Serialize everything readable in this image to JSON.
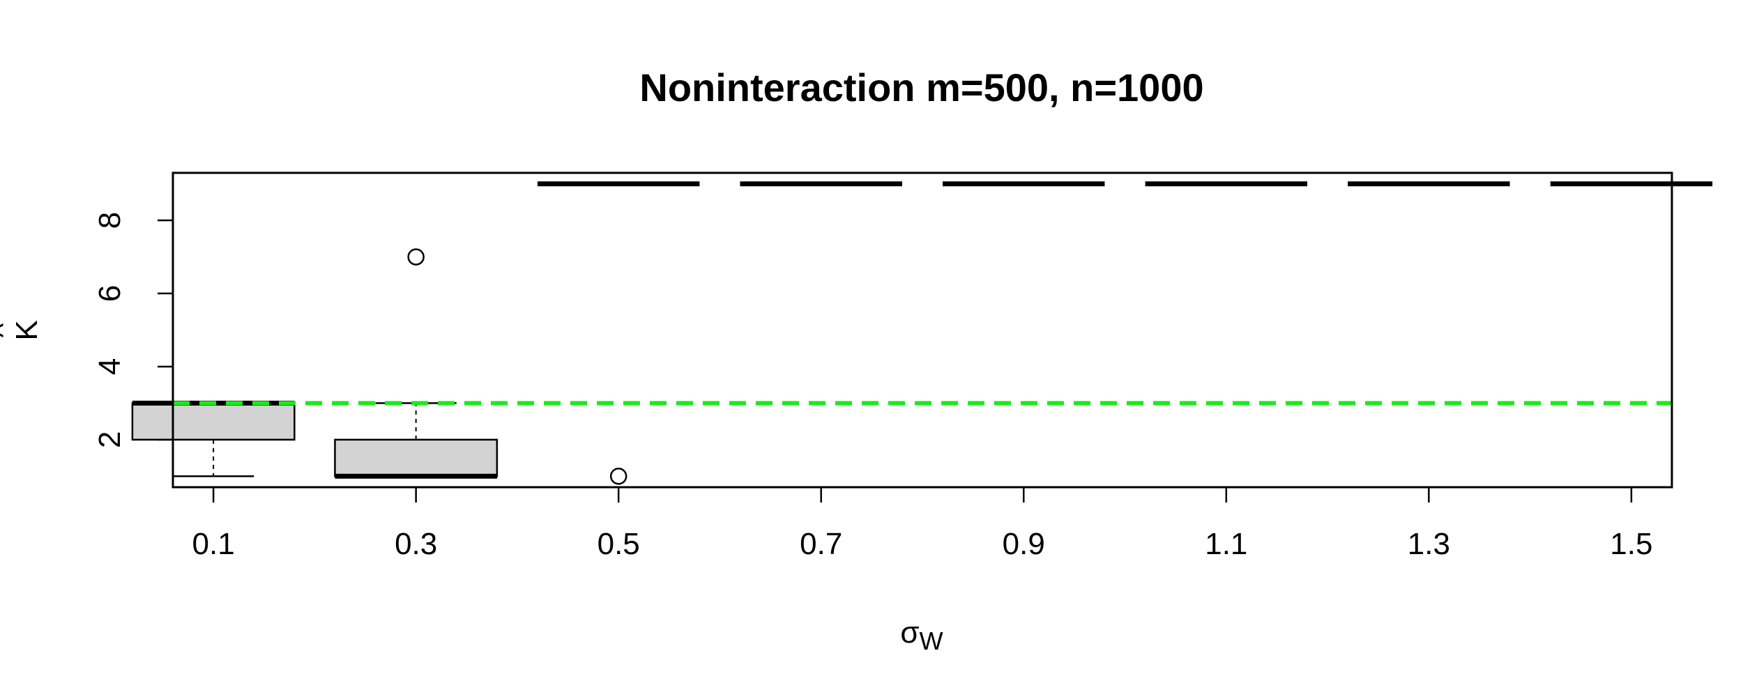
{
  "chart_data": {
    "type": "box",
    "title": "Noninteraction m=500, n=1000",
    "xlabel": "σ",
    "xlabel_subscript": "W",
    "ylabel": "K",
    "ylabel_accent": "^",
    "categories": [
      "0.1",
      "0.3",
      "0.5",
      "0.7",
      "0.9",
      "1.1",
      "1.3",
      "1.5"
    ],
    "ylim": [
      0.7,
      9.3
    ],
    "yticks": [
      2,
      4,
      6,
      8
    ],
    "reference_line": {
      "y": 3,
      "style": "dashed",
      "color": "#1aeb1a"
    },
    "boxes": [
      {
        "category": "0.1",
        "whisker_low": 1,
        "q1": 2,
        "median": 3,
        "q3": 3,
        "whisker_high": 3,
        "outliers": []
      },
      {
        "category": "0.3",
        "whisker_low": 1,
        "q1": 1,
        "median": 1,
        "q3": 2,
        "whisker_high": 3,
        "outliers": [
          7
        ]
      },
      {
        "category": "0.5",
        "whisker_low": 9,
        "q1": 9,
        "median": 9,
        "q3": 9,
        "whisker_high": 9,
        "outliers": [
          1
        ]
      },
      {
        "category": "0.7",
        "whisker_low": 9,
        "q1": 9,
        "median": 9,
        "q3": 9,
        "whisker_high": 9,
        "outliers": []
      },
      {
        "category": "0.9",
        "whisker_low": 9,
        "q1": 9,
        "median": 9,
        "q3": 9,
        "whisker_high": 9,
        "outliers": []
      },
      {
        "category": "1.1",
        "whisker_low": 9,
        "q1": 9,
        "median": 9,
        "q3": 9,
        "whisker_high": 9,
        "outliers": []
      },
      {
        "category": "1.3",
        "whisker_low": 9,
        "q1": 9,
        "median": 9,
        "q3": 9,
        "whisker_high": 9,
        "outliers": []
      },
      {
        "category": "1.5",
        "whisker_low": 9,
        "q1": 9,
        "median": 9,
        "q3": 9,
        "whisker_high": 9,
        "outliers": []
      }
    ],
    "colors": {
      "box_fill": "#d3d3d3",
      "reference": "#1aeb1a"
    },
    "grid": false,
    "legend": "none"
  }
}
